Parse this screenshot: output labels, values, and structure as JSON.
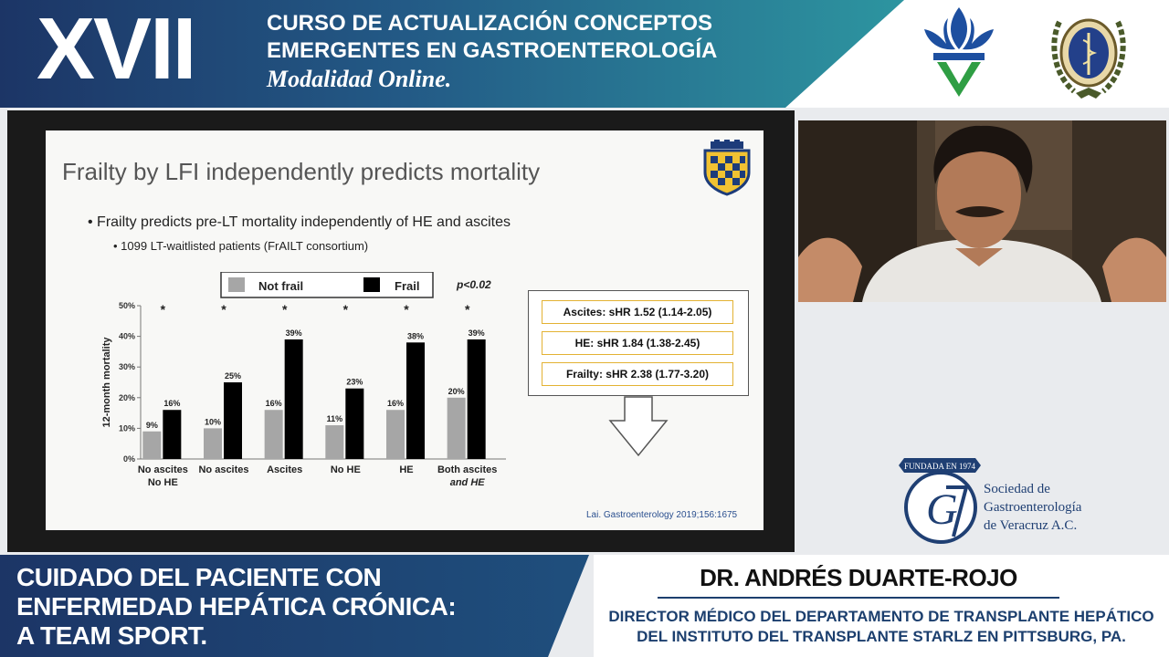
{
  "header": {
    "edition": "XVII",
    "course_line1": "CURSO DE ACTUALIZACIÓN CONCEPTOS",
    "course_line2": "EMERGENTES EN GASTROENTEROLOGÍA",
    "modality": "Modalidad Online."
  },
  "slide": {
    "title": "Frailty by LFI independently predicts mortality",
    "bullet_main": "Frailty predicts pre-LT mortality independently of HE and ascites",
    "bullet_sub": "1099 LT-waitlisted patients (FrAILT consortium)",
    "hazard_ratios": [
      "Ascites: sHR 1.52 (1.14-2.05)",
      "HE: sHR 1.84 (1.38-2.45)",
      "Frailty: sHR 2.38 (1.77-3.20)"
    ],
    "citation": "Lai. Gastroenterology 2019;156:1675"
  },
  "chart_data": {
    "type": "bar",
    "ylabel": "12-month mortality",
    "ylim": [
      0,
      50
    ],
    "yticks": [
      "0%",
      "10%",
      "20%",
      "30%",
      "40%",
      "50%"
    ],
    "categories": [
      [
        "No ascites",
        "No HE"
      ],
      [
        "No ascites"
      ],
      [
        "Ascites"
      ],
      [
        "No HE"
      ],
      [
        "HE"
      ],
      [
        "Both ascites",
        "and HE"
      ]
    ],
    "series": [
      {
        "name": "Not frail",
        "values": [
          9,
          10,
          16,
          11,
          16,
          20
        ],
        "labels": [
          "9%",
          "10%",
          "16%",
          "11%",
          "16%",
          "20%"
        ]
      },
      {
        "name": "Frail",
        "values": [
          16,
          25,
          39,
          23,
          38,
          39
        ],
        "labels": [
          "16%",
          "25%",
          "39%",
          "23%",
          "38%",
          "39%"
        ]
      }
    ],
    "significance_marker": "*",
    "p_value_label": "p<0.02",
    "colors": {
      "not_frail": "#a6a6a6",
      "frail": "#000000"
    }
  },
  "sponsor": {
    "founded": "FUNDADA EN 1974",
    "name_line1": "Sociedad de",
    "name_line2": "Gastroenterología",
    "name_line3": "de Veracruz A.C."
  },
  "lower_third": {
    "talk_line1": "CUIDADO DEL PACIENTE CON",
    "talk_line2": "ENFERMEDAD HEPÁTICA CRÓNICA:",
    "talk_line3": "A TEAM SPORT.",
    "speaker_name": "DR. ANDRÉS DUARTE-ROJO",
    "speaker_role_line1": "DIRECTOR MÉDICO DEL DEPARTAMENTO DE TRANSPLANTE HEPÁTICO",
    "speaker_role_line2": "DEL INSTITUTO DEL TRANSPLANTE STARLZ EN PITTSBURG, PA."
  },
  "colors": {
    "brand_blue": "#1f3f73",
    "brand_teal": "#2a8a99",
    "logo_green": "#2f9e44",
    "logo_blue": "#1d4fa0"
  }
}
